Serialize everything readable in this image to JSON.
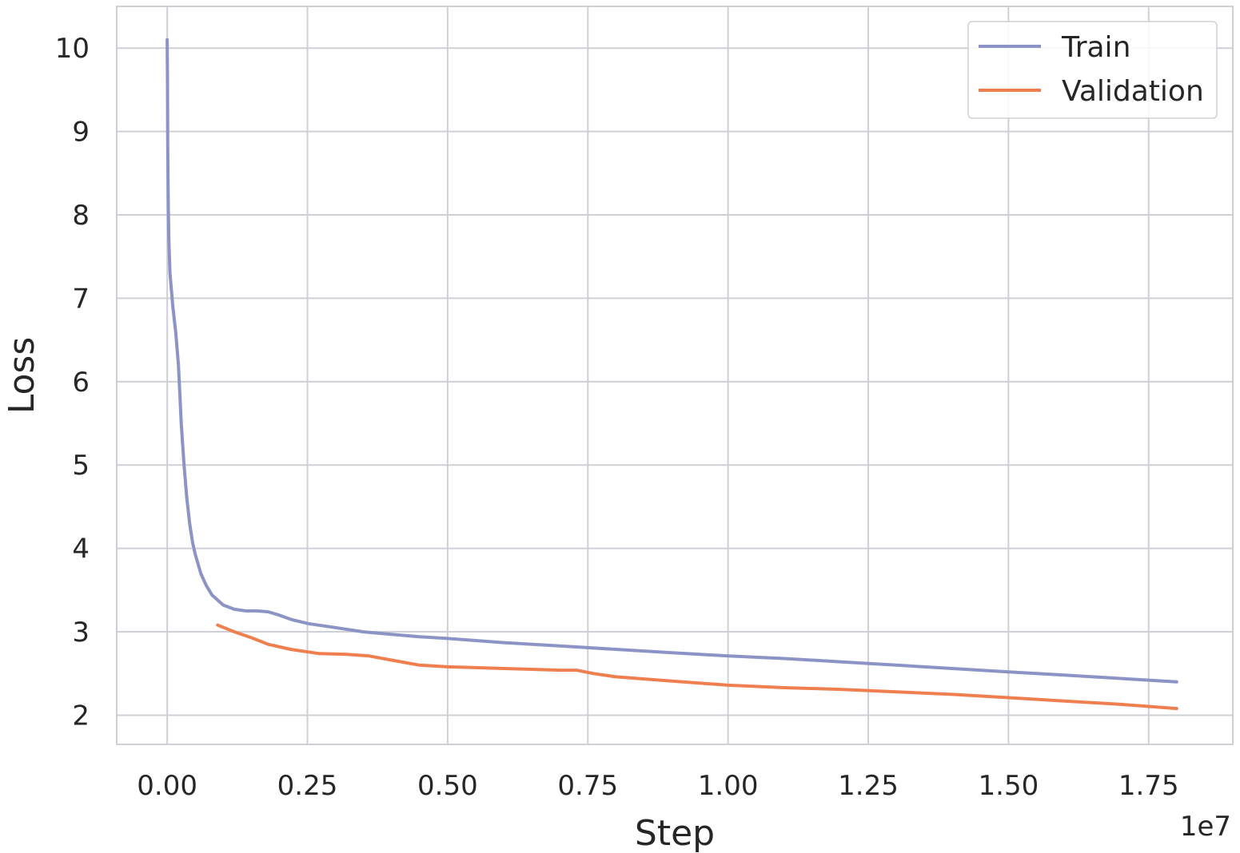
{
  "chart_data": {
    "type": "line",
    "title": "",
    "xlabel": "Step",
    "ylabel": "Loss",
    "x_offset_label": "1e7",
    "x_scale": 10000000,
    "xlim": [
      -0.09,
      1.9
    ],
    "ylim": [
      1.65,
      10.5
    ],
    "xticks": [
      0.0,
      0.25,
      0.5,
      0.75,
      1.0,
      1.25,
      1.5,
      1.75
    ],
    "xtick_labels": [
      "0.00",
      "0.25",
      "0.50",
      "0.75",
      "1.00",
      "1.25",
      "1.50",
      "1.75"
    ],
    "yticks": [
      2,
      3,
      4,
      5,
      6,
      7,
      8,
      9,
      10
    ],
    "ytick_labels": [
      "2",
      "3",
      "4",
      "5",
      "6",
      "7",
      "8",
      "9",
      "10"
    ],
    "grid": true,
    "legend_position": "top-right",
    "series": [
      {
        "name": "Train",
        "color": "#8b94c4",
        "x": [
          0.0,
          0.0005,
          0.001,
          0.002,
          0.003,
          0.005,
          0.01,
          0.015,
          0.02,
          0.025,
          0.03,
          0.035,
          0.04,
          0.045,
          0.05,
          0.06,
          0.07,
          0.08,
          0.1,
          0.12,
          0.14,
          0.16,
          0.18,
          0.2,
          0.22,
          0.25,
          0.3,
          0.35,
          0.4,
          0.45,
          0.5,
          0.6,
          0.7,
          0.8,
          0.9,
          1.0,
          1.1,
          1.2,
          1.3,
          1.4,
          1.5,
          1.6,
          1.7,
          1.8
        ],
        "y": [
          10.1,
          9.6,
          8.8,
          8.1,
          7.7,
          7.3,
          6.9,
          6.6,
          6.2,
          5.5,
          5.0,
          4.6,
          4.3,
          4.08,
          3.93,
          3.7,
          3.55,
          3.44,
          3.32,
          3.27,
          3.25,
          3.25,
          3.24,
          3.2,
          3.15,
          3.1,
          3.05,
          3.0,
          2.97,
          2.94,
          2.92,
          2.87,
          2.83,
          2.79,
          2.75,
          2.71,
          2.68,
          2.64,
          2.6,
          2.56,
          2.52,
          2.48,
          2.44,
          2.4
        ]
      },
      {
        "name": "Validation",
        "color": "#ef7f4f",
        "x": [
          0.09,
          0.12,
          0.15,
          0.18,
          0.22,
          0.27,
          0.32,
          0.36,
          0.4,
          0.45,
          0.5,
          0.55,
          0.6,
          0.65,
          0.7,
          0.73,
          0.76,
          0.8,
          0.9,
          1.0,
          1.1,
          1.2,
          1.3,
          1.4,
          1.5,
          1.6,
          1.7,
          1.8
        ],
        "y": [
          3.08,
          3.0,
          2.93,
          2.85,
          2.79,
          2.74,
          2.73,
          2.71,
          2.66,
          2.6,
          2.58,
          2.57,
          2.56,
          2.55,
          2.54,
          2.54,
          2.5,
          2.46,
          2.41,
          2.36,
          2.33,
          2.31,
          2.28,
          2.25,
          2.21,
          2.17,
          2.13,
          2.08
        ]
      }
    ]
  }
}
